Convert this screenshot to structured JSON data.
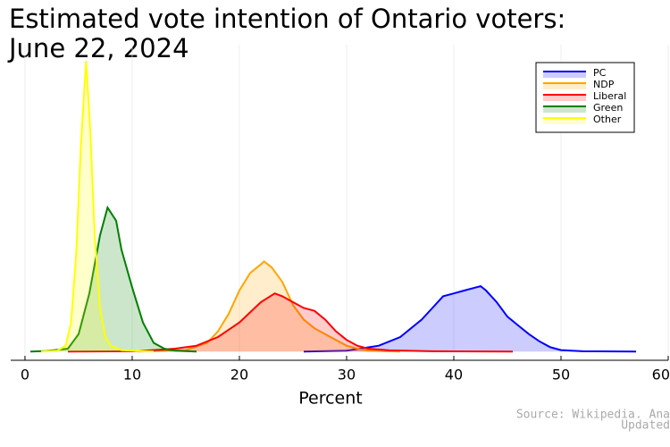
{
  "chart_data": {
    "type": "density",
    "title": [
      "Estimated vote intention of Ontario voters:",
      "June 22, 2024"
    ],
    "x_label": "Percent",
    "source": [
      "Source: Wikipedia. Ana",
      "Updated"
    ],
    "xlim": [
      -1.33,
      60
    ],
    "ylim": [
      -0.03,
      1.0
    ],
    "xticks": [
      0,
      10,
      20,
      30,
      40,
      50,
      60
    ],
    "grid": true,
    "legend": "top-right",
    "series": [
      {
        "name": "PC",
        "color": "#0000ff",
        "x": [
          26,
          30,
          33,
          35,
          37,
          38,
          39,
          40,
          41,
          42,
          42.5,
          43,
          44,
          45,
          46,
          47,
          48,
          49,
          50,
          52,
          57
        ],
        "values": [
          0,
          0.003,
          0.02,
          0.05,
          0.11,
          0.15,
          0.19,
          0.2,
          0.21,
          0.22,
          0.225,
          0.21,
          0.17,
          0.12,
          0.09,
          0.06,
          0.035,
          0.015,
          0.005,
          0.001,
          0
        ]
      },
      {
        "name": "NDP",
        "color": "#ffa500",
        "x": [
          10.5,
          15,
          17,
          18,
          19,
          20,
          21,
          22,
          22.3,
          23,
          24,
          25,
          26,
          27,
          28,
          29,
          30,
          31,
          32,
          35
        ],
        "values": [
          0,
          0.005,
          0.03,
          0.07,
          0.13,
          0.21,
          0.27,
          0.3,
          0.31,
          0.29,
          0.24,
          0.16,
          0.11,
          0.08,
          0.06,
          0.04,
          0.02,
          0.01,
          0.003,
          0
        ]
      },
      {
        "name": "Liberal",
        "color": "#ff0000",
        "x": [
          4,
          10,
          12,
          14,
          16,
          18,
          20,
          22,
          23.3,
          24,
          25,
          26,
          27,
          28,
          29,
          30,
          31,
          32,
          34,
          38,
          45.5
        ],
        "values": [
          0,
          0.001,
          0.005,
          0.01,
          0.02,
          0.05,
          0.1,
          0.17,
          0.2,
          0.19,
          0.17,
          0.15,
          0.14,
          0.11,
          0.07,
          0.04,
          0.02,
          0.01,
          0.004,
          0.001,
          0
        ]
      },
      {
        "name": "Green",
        "color": "#008000",
        "x": [
          0.5,
          2,
          4,
          5,
          6,
          7,
          7.7,
          8.5,
          9,
          10,
          11,
          12,
          13,
          14,
          16
        ],
        "values": [
          0,
          0.002,
          0.01,
          0.06,
          0.2,
          0.4,
          0.495,
          0.45,
          0.35,
          0.22,
          0.1,
          0.03,
          0.01,
          0.003,
          0
        ]
      },
      {
        "name": "Other",
        "color": "#ffff00",
        "x": [
          1.5,
          3,
          3.8,
          4.3,
          4.8,
          5.2,
          5.7,
          6.1,
          6.5,
          7,
          7.5,
          8,
          9,
          12
        ],
        "values": [
          0,
          0.003,
          0.02,
          0.1,
          0.35,
          0.7,
          1.0,
          0.75,
          0.4,
          0.15,
          0.05,
          0.02,
          0.005,
          0
        ]
      }
    ]
  }
}
